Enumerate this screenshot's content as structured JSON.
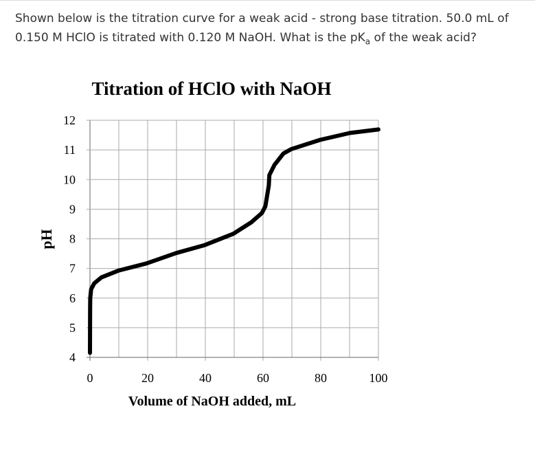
{
  "question": {
    "text_before": "Shown below is the titration curve for a weak acid - strong base titration. 50.0 mL of 0.150 M HClO is titrated with 0.120 M NaOH. What is the pK",
    "subscript": "a",
    "text_after": " of the weak acid?"
  },
  "chart_data": {
    "type": "line",
    "title": "Titration of HClO with NaOH",
    "xlabel": "Volume of NaOH added, mL",
    "ylabel": "pH",
    "xlim": [
      0,
      100
    ],
    "ylim": [
      4,
      12
    ],
    "xticks": [
      0,
      20,
      40,
      60,
      80,
      100
    ],
    "yticks": [
      4,
      5,
      6,
      7,
      8,
      9,
      10,
      11,
      12
    ],
    "grid": true,
    "line_color": "#000000",
    "series": [
      {
        "x": [
          0,
          0.05,
          0.1,
          0.4,
          1.5,
          4,
          10,
          19.6,
          29.9,
          39.8,
          49.7,
          56,
          59.6,
          60.8,
          62,
          62.2,
          64,
          67.1,
          69.9,
          79.8,
          90.1,
          100
        ],
        "y": [
          4.15,
          5.6,
          6.0,
          6.3,
          6.5,
          6.7,
          6.93,
          7.17,
          7.52,
          7.79,
          8.17,
          8.56,
          8.87,
          9.1,
          9.8,
          10.15,
          10.5,
          10.88,
          11.03,
          11.34,
          11.57,
          11.69
        ]
      }
    ]
  }
}
